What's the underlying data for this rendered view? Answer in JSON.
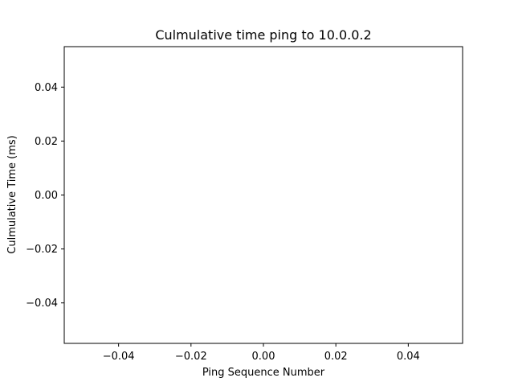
{
  "chart_data": {
    "type": "line",
    "title": "Culmulative time ping to 10.0.0.2",
    "xlabel": "Ping Sequence Number",
    "ylabel": "Culmulative Time (ms)",
    "xlim": [
      -0.055,
      0.055
    ],
    "ylim": [
      -0.055,
      0.055
    ],
    "x_ticks": [
      -0.04,
      -0.02,
      0.0,
      0.02,
      0.04
    ],
    "x_tick_labels": [
      "−0.04",
      "−0.02",
      "0.00",
      "0.02",
      "0.04"
    ],
    "y_ticks": [
      -0.04,
      -0.02,
      0.0,
      0.02,
      0.04
    ],
    "y_tick_labels": [
      "−0.04",
      "−0.02",
      "0.00",
      "0.02",
      "0.04"
    ],
    "series": [
      {
        "x": [],
        "y": []
      }
    ],
    "grid": false,
    "colors": {
      "axes": "#000000",
      "background": "#ffffff"
    }
  }
}
